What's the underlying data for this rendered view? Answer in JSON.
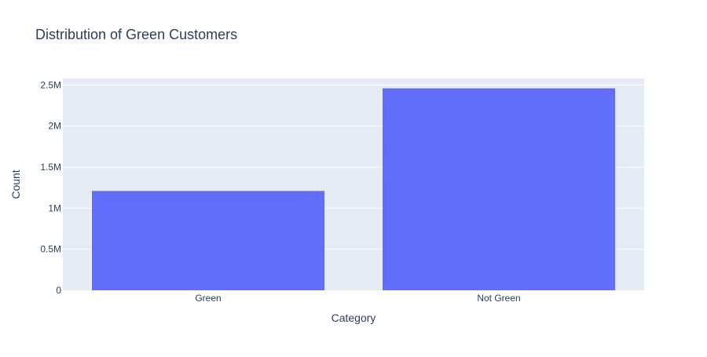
{
  "chart_data": {
    "type": "bar",
    "title": "Distribution of Green Customers",
    "xlabel": "Category",
    "ylabel": "Count",
    "categories": [
      "Green",
      "Not Green"
    ],
    "values": [
      1210000,
      2460000
    ],
    "ylim": [
      0,
      2580000
    ],
    "yticks": [
      {
        "value": 0,
        "label": "0"
      },
      {
        "value": 500000,
        "label": "0.5M"
      },
      {
        "value": 1000000,
        "label": "1M"
      },
      {
        "value": 1500000,
        "label": "1.5M"
      },
      {
        "value": 2000000,
        "label": "2M"
      },
      {
        "value": 2500000,
        "label": "2.5M"
      }
    ],
    "grid": true,
    "colors": {
      "bar": "#636efa",
      "plot_background": "#e5ecf6",
      "text": "#2a3f5f"
    }
  }
}
